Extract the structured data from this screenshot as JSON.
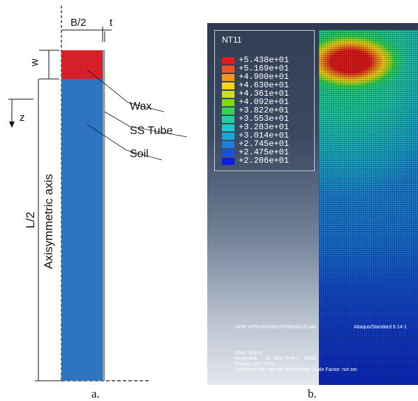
{
  "panel_a": {
    "dim_halfwidth": "B/2",
    "dim_thickness": "t",
    "dim_wax": "w",
    "axis_z": "z",
    "dim_halflength": "L/2",
    "axis_label": "Axisymmetric axis",
    "labels": {
      "wax": "Wax",
      "tube": "SS Tube",
      "soil": "Soil"
    },
    "caption": "a.",
    "colors": {
      "wax": "#d62027",
      "soil": "#2f74c0",
      "tube": "#9aa6b2"
    }
  },
  "panel_b": {
    "legend_title": "NT11",
    "legend_values": [
      "+5.438e+01",
      "+5.169e+01",
      "+4.900e+01",
      "+4.630e+01",
      "+4.361e+01",
      "+4.092e+01",
      "+3.822e+01",
      "+3.553e+01",
      "+3.283e+01",
      "+3.014e+01",
      "+2.745e+01",
      "+2.475e+01",
      "+2.206e+01"
    ],
    "legend_colors": [
      "#e31a1c",
      "#f2541b",
      "#f7941d",
      "#f7d21c",
      "#c8e11c",
      "#7fd81c",
      "#2fd65a",
      "#1fd3a0",
      "#1fc9c9",
      "#1aa7d8",
      "#1c7fe0",
      "#1750e6",
      "#0d1bea"
    ],
    "odb_line": "ODB: d75h320w30c2lr20tiestc15.odb",
    "solver_line": "Abaqus/Standard 6.14-1",
    "step_line": "Step: Step-1",
    "increment_line": "Increment      31: Step Time =    6059.",
    "primary_var_line": "Primary Var: NT11",
    "deformed_var_line": "Deformed Var: not set   Deformation Scale Factor: not set",
    "caption": "b."
  }
}
